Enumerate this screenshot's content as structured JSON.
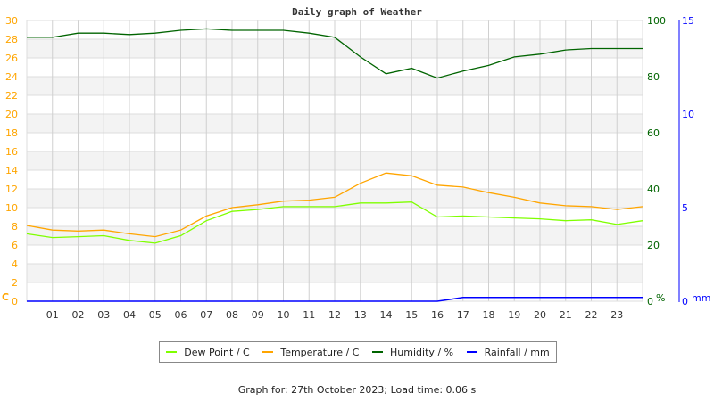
{
  "chart_data": {
    "type": "line",
    "title": "Daily graph of Weather",
    "x_ticks": [
      "01",
      "02",
      "03",
      "04",
      "05",
      "06",
      "07",
      "08",
      "09",
      "10",
      "11",
      "12",
      "13",
      "14",
      "15",
      "16",
      "17",
      "18",
      "19",
      "20",
      "21",
      "22",
      "23"
    ],
    "x": [
      0,
      1,
      2,
      3,
      4,
      5,
      6,
      7,
      8,
      9,
      10,
      11,
      12,
      13,
      14,
      15,
      16,
      17,
      18,
      19,
      20,
      21,
      22,
      23,
      24
    ],
    "xlim": [
      0,
      24
    ],
    "axes": {
      "left": {
        "label": "C",
        "ylim": [
          0,
          30
        ],
        "ticks": [
          0,
          2,
          4,
          6,
          8,
          10,
          12,
          14,
          16,
          18,
          20,
          22,
          24,
          26,
          28,
          30
        ],
        "color": "#ffa500"
      },
      "right": {
        "label": "%",
        "ylim": [
          0,
          100
        ],
        "ticks": [
          0,
          20,
          40,
          60,
          80,
          100
        ],
        "color": "#006400"
      },
      "far_right": {
        "label": "mm",
        "ylim": [
          0,
          15
        ],
        "ticks": [
          0,
          5,
          10,
          15
        ],
        "color": "#0000ff"
      }
    },
    "grid": true,
    "legend_placement": "bottom",
    "series": [
      {
        "name": "Dew Point / C",
        "axis": "left",
        "color": "#7fff00",
        "values": [
          7.2,
          6.8,
          6.9,
          7.0,
          6.5,
          6.2,
          7.0,
          8.6,
          9.6,
          9.8,
          10.1,
          10.1,
          10.1,
          10.5,
          10.5,
          10.6,
          9.0,
          9.1,
          9.0,
          8.9,
          8.8,
          8.6,
          8.7,
          8.2,
          8.6
        ]
      },
      {
        "name": "Temperature / C",
        "axis": "left",
        "color": "#ffa500",
        "values": [
          8.1,
          7.6,
          7.5,
          7.6,
          7.2,
          6.9,
          7.6,
          9.1,
          10.0,
          10.3,
          10.7,
          10.8,
          11.1,
          12.6,
          13.7,
          13.4,
          12.4,
          12.2,
          11.6,
          11.1,
          10.5,
          10.2,
          10.1,
          9.8,
          10.1
        ]
      },
      {
        "name": "Humidity / %",
        "axis": "right",
        "color": "#006400",
        "values": [
          94,
          94,
          95.5,
          95.5,
          95,
          95.5,
          96.5,
          97,
          96.5,
          96.5,
          96.5,
          95.5,
          94,
          87,
          81,
          83,
          79.5,
          82,
          84,
          87,
          88,
          89.5,
          90,
          90,
          90
        ]
      },
      {
        "name": "Rainfall / mm",
        "axis": "far_right",
        "color": "#0000ff",
        "values": [
          0,
          0,
          0,
          0,
          0,
          0,
          0,
          0,
          0,
          0,
          0,
          0,
          0,
          0,
          0,
          0,
          0,
          0.2,
          0.2,
          0.2,
          0.2,
          0.2,
          0.2,
          0.2,
          0.2
        ]
      }
    ]
  },
  "footer": "Graph for: 27th October 2023; Load time: 0.06 s"
}
